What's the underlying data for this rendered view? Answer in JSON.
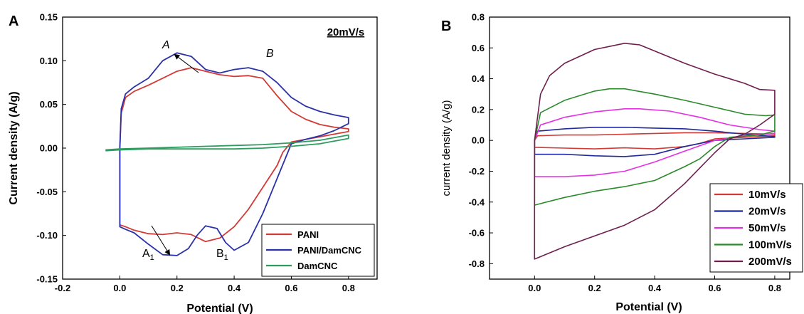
{
  "panels": {
    "a": "A",
    "b": "B"
  },
  "chart_data": [
    {
      "type": "line",
      "panel": "A",
      "xlabel": "Potential (V)",
      "ylabel": "Current density (A/g)",
      "xlim": [
        -0.2,
        0.9
      ],
      "ylim": [
        -0.15,
        0.15
      ],
      "xticks": [
        "-0.2",
        "0.0",
        "0.2",
        "0.4",
        "0.6",
        "0.8"
      ],
      "yticks": [
        "-0.15",
        "-0.10",
        "-0.05",
        "0.00",
        "0.05",
        "0.10",
        "0.15"
      ],
      "annotation": "20mV/s",
      "peak_labels": {
        "A": "A",
        "B": "B",
        "A1": "A",
        "A1_sub": "1",
        "B1": "B",
        "B1_sub": "1"
      },
      "legend_position": "bottom-right",
      "series": [
        {
          "name": "PANI",
          "color": "#d23a35",
          "points": [
            [
              0.0,
              0.0
            ],
            [
              0.005,
              0.04
            ],
            [
              0.02,
              0.058
            ],
            [
              0.05,
              0.065
            ],
            [
              0.1,
              0.072
            ],
            [
              0.15,
              0.08
            ],
            [
              0.2,
              0.088
            ],
            [
              0.25,
              0.092
            ],
            [
              0.3,
              0.088
            ],
            [
              0.35,
              0.084
            ],
            [
              0.4,
              0.082
            ],
            [
              0.45,
              0.083
            ],
            [
              0.5,
              0.08
            ],
            [
              0.55,
              0.06
            ],
            [
              0.6,
              0.042
            ],
            [
              0.65,
              0.033
            ],
            [
              0.7,
              0.027
            ],
            [
              0.75,
              0.024
            ],
            [
              0.8,
              0.022
            ],
            [
              0.8,
              0.019
            ],
            [
              0.75,
              0.016
            ],
            [
              0.7,
              0.013
            ],
            [
              0.65,
              0.01
            ],
            [
              0.6,
              0.007
            ],
            [
              0.57,
              -0.005
            ],
            [
              0.55,
              -0.02
            ],
            [
              0.5,
              -0.045
            ],
            [
              0.45,
              -0.07
            ],
            [
              0.4,
              -0.09
            ],
            [
              0.35,
              -0.103
            ],
            [
              0.3,
              -0.107
            ],
            [
              0.25,
              -0.099
            ],
            [
              0.2,
              -0.097
            ],
            [
              0.15,
              -0.099
            ],
            [
              0.1,
              -0.098
            ],
            [
              0.05,
              -0.094
            ],
            [
              0.02,
              -0.09
            ],
            [
              0.0,
              -0.088
            ],
            [
              0.0,
              0.0
            ]
          ]
        },
        {
          "name": "PANI/DamCNC",
          "color": "#2b31a8",
          "points": [
            [
              0.0,
              0.0
            ],
            [
              0.005,
              0.045
            ],
            [
              0.02,
              0.062
            ],
            [
              0.05,
              0.07
            ],
            [
              0.1,
              0.08
            ],
            [
              0.15,
              0.1
            ],
            [
              0.2,
              0.109
            ],
            [
              0.25,
              0.105
            ],
            [
              0.3,
              0.09
            ],
            [
              0.35,
              0.086
            ],
            [
              0.4,
              0.09
            ],
            [
              0.45,
              0.092
            ],
            [
              0.5,
              0.088
            ],
            [
              0.55,
              0.075
            ],
            [
              0.6,
              0.058
            ],
            [
              0.65,
              0.048
            ],
            [
              0.7,
              0.042
            ],
            [
              0.75,
              0.038
            ],
            [
              0.8,
              0.035
            ],
            [
              0.8,
              0.028
            ],
            [
              0.75,
              0.02
            ],
            [
              0.7,
              0.014
            ],
            [
              0.65,
              0.01
            ],
            [
              0.6,
              0.005
            ],
            [
              0.55,
              -0.035
            ],
            [
              0.5,
              -0.075
            ],
            [
              0.45,
              -0.108
            ],
            [
              0.4,
              -0.117
            ],
            [
              0.37,
              -0.108
            ],
            [
              0.34,
              -0.092
            ],
            [
              0.3,
              -0.089
            ],
            [
              0.27,
              -0.1
            ],
            [
              0.24,
              -0.115
            ],
            [
              0.2,
              -0.123
            ],
            [
              0.15,
              -0.122
            ],
            [
              0.1,
              -0.11
            ],
            [
              0.05,
              -0.097
            ],
            [
              0.02,
              -0.093
            ],
            [
              0.0,
              -0.09
            ],
            [
              0.0,
              0.0
            ]
          ]
        },
        {
          "name": "DamCNC",
          "color": "#2e9c5e",
          "points": [
            [
              -0.05,
              -0.002
            ],
            [
              0.0,
              -0.001
            ],
            [
              0.1,
              0.0
            ],
            [
              0.2,
              0.001
            ],
            [
              0.3,
              0.002
            ],
            [
              0.4,
              0.003
            ],
            [
              0.5,
              0.004
            ],
            [
              0.6,
              0.006
            ],
            [
              0.7,
              0.009
            ],
            [
              0.8,
              0.015
            ],
            [
              0.8,
              0.011
            ],
            [
              0.7,
              0.005
            ],
            [
              0.6,
              0.002
            ],
            [
              0.5,
              0.0
            ],
            [
              0.4,
              -0.001
            ],
            [
              0.3,
              -0.001
            ],
            [
              0.2,
              -0.001
            ],
            [
              0.1,
              -0.001
            ],
            [
              0.0,
              -0.002
            ],
            [
              -0.05,
              -0.003
            ]
          ]
        }
      ]
    },
    {
      "type": "line",
      "panel": "B",
      "xlabel": "Potential (V)",
      "ylabel": "current density (A/g)",
      "xlim": [
        -0.15,
        0.85
      ],
      "ylim": [
        -0.9,
        0.8
      ],
      "xticks": [
        "0.0",
        "0.2",
        "0.4",
        "0.6",
        "0.8"
      ],
      "yticks": [
        "-0.8",
        "-0.6",
        "-0.4",
        "-0.2",
        "0.0",
        "0.2",
        "0.4",
        "0.6",
        "0.8"
      ],
      "legend_position": "bottom-right",
      "series": [
        {
          "name": "10mV/s",
          "color": "#d23a35",
          "points": [
            [
              0.0,
              0.0
            ],
            [
              0.01,
              0.03
            ],
            [
              0.1,
              0.035
            ],
            [
              0.2,
              0.035
            ],
            [
              0.3,
              0.04
            ],
            [
              0.4,
              0.045
            ],
            [
              0.5,
              0.05
            ],
            [
              0.6,
              0.05
            ],
            [
              0.7,
              0.045
            ],
            [
              0.8,
              0.04
            ],
            [
              0.8,
              0.03
            ],
            [
              0.7,
              0.02
            ],
            [
              0.6,
              0.01
            ],
            [
              0.55,
              -0.02
            ],
            [
              0.5,
              -0.04
            ],
            [
              0.4,
              -0.055
            ],
            [
              0.3,
              -0.048
            ],
            [
              0.2,
              -0.055
            ],
            [
              0.1,
              -0.05
            ],
            [
              0.0,
              -0.045
            ],
            [
              0.0,
              0.0
            ]
          ]
        },
        {
          "name": "20mV/s",
          "color": "#1f2a9c",
          "points": [
            [
              0.0,
              0.0
            ],
            [
              0.01,
              0.06
            ],
            [
              0.1,
              0.075
            ],
            [
              0.2,
              0.085
            ],
            [
              0.3,
              0.085
            ],
            [
              0.4,
              0.08
            ],
            [
              0.5,
              0.075
            ],
            [
              0.6,
              0.06
            ],
            [
              0.7,
              0.04
            ],
            [
              0.8,
              0.025
            ],
            [
              0.8,
              0.02
            ],
            [
              0.7,
              0.01
            ],
            [
              0.6,
              0.0
            ],
            [
              0.5,
              -0.04
            ],
            [
              0.4,
              -0.09
            ],
            [
              0.3,
              -0.105
            ],
            [
              0.2,
              -0.1
            ],
            [
              0.1,
              -0.09
            ],
            [
              0.0,
              -0.09
            ],
            [
              0.0,
              0.0
            ]
          ]
        },
        {
          "name": "50mV/s",
          "color": "#e52fe5",
          "points": [
            [
              0.0,
              0.0
            ],
            [
              0.02,
              0.1
            ],
            [
              0.1,
              0.15
            ],
            [
              0.2,
              0.185
            ],
            [
              0.3,
              0.205
            ],
            [
              0.35,
              0.205
            ],
            [
              0.45,
              0.19
            ],
            [
              0.55,
              0.15
            ],
            [
              0.65,
              0.1
            ],
            [
              0.75,
              0.07
            ],
            [
              0.8,
              0.06
            ],
            [
              0.8,
              0.045
            ],
            [
              0.7,
              0.03
            ],
            [
              0.6,
              0.0
            ],
            [
              0.5,
              -0.07
            ],
            [
              0.4,
              -0.14
            ],
            [
              0.3,
              -0.2
            ],
            [
              0.2,
              -0.225
            ],
            [
              0.1,
              -0.235
            ],
            [
              0.0,
              -0.235
            ],
            [
              0.0,
              0.0
            ]
          ]
        },
        {
          "name": "100mV/s",
          "color": "#2b8a2b",
          "points": [
            [
              0.0,
              0.0
            ],
            [
              0.02,
              0.18
            ],
            [
              0.1,
              0.26
            ],
            [
              0.2,
              0.32
            ],
            [
              0.25,
              0.335
            ],
            [
              0.3,
              0.335
            ],
            [
              0.4,
              0.3
            ],
            [
              0.5,
              0.26
            ],
            [
              0.6,
              0.215
            ],
            [
              0.7,
              0.17
            ],
            [
              0.77,
              0.16
            ],
            [
              0.8,
              0.165
            ],
            [
              0.8,
              0.06
            ],
            [
              0.75,
              0.035
            ],
            [
              0.65,
              0.02
            ],
            [
              0.6,
              -0.04
            ],
            [
              0.55,
              -0.12
            ],
            [
              0.5,
              -0.17
            ],
            [
              0.4,
              -0.26
            ],
            [
              0.3,
              -0.3
            ],
            [
              0.2,
              -0.33
            ],
            [
              0.1,
              -0.37
            ],
            [
              0.0,
              -0.42
            ],
            [
              0.0,
              0.0
            ]
          ]
        },
        {
          "name": "200mV/s",
          "color": "#6e1f4e",
          "points": [
            [
              0.0,
              0.0
            ],
            [
              0.02,
              0.3
            ],
            [
              0.05,
              0.42
            ],
            [
              0.1,
              0.5
            ],
            [
              0.2,
              0.59
            ],
            [
              0.3,
              0.63
            ],
            [
              0.35,
              0.62
            ],
            [
              0.4,
              0.58
            ],
            [
              0.5,
              0.5
            ],
            [
              0.6,
              0.43
            ],
            [
              0.7,
              0.37
            ],
            [
              0.75,
              0.33
            ],
            [
              0.8,
              0.325
            ],
            [
              0.8,
              0.17
            ],
            [
              0.75,
              0.1
            ],
            [
              0.7,
              0.04
            ],
            [
              0.65,
              0.01
            ],
            [
              0.6,
              -0.08
            ],
            [
              0.55,
              -0.18
            ],
            [
              0.5,
              -0.28
            ],
            [
              0.4,
              -0.45
            ],
            [
              0.3,
              -0.55
            ],
            [
              0.2,
              -0.62
            ],
            [
              0.1,
              -0.69
            ],
            [
              0.0,
              -0.77
            ],
            [
              0.0,
              0.0
            ]
          ]
        }
      ]
    }
  ]
}
